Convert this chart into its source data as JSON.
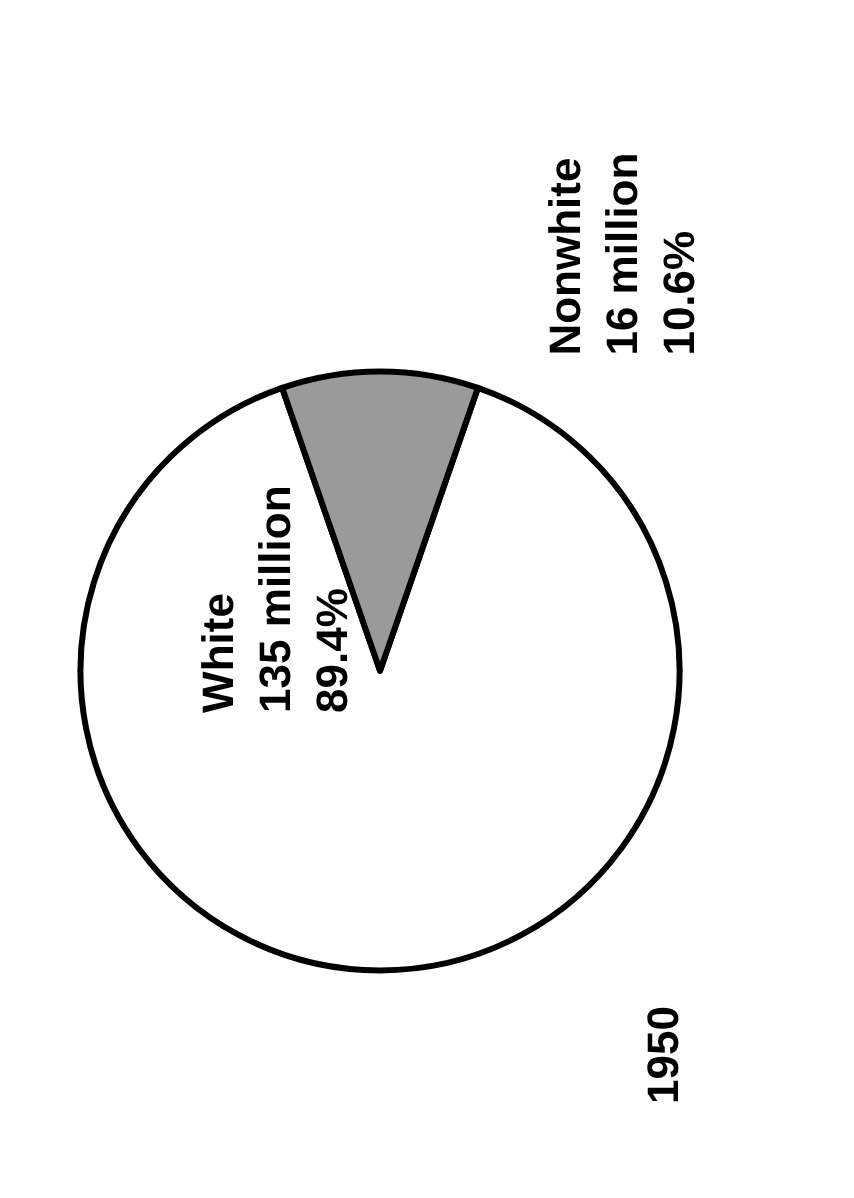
{
  "chart_data": {
    "type": "pie",
    "title": "1950",
    "categories": [
      "White",
      "Nonwhite"
    ],
    "values": [
      89.4,
      10.6
    ],
    "colors": [
      "#ffffff",
      "#9a9a9a"
    ],
    "value_labels": [
      "135 million\n89.4%",
      "16 million\n10.6%"
    ]
  }
}
